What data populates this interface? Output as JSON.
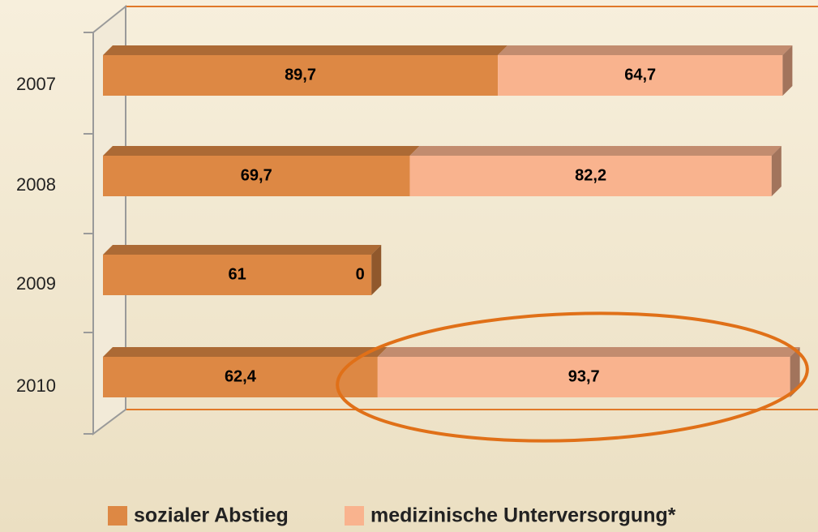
{
  "chart_data": {
    "type": "bar",
    "orientation": "horizontal",
    "stacked": true,
    "categories": [
      "2007",
      "2008",
      "2009",
      "2010"
    ],
    "series": [
      {
        "name": "sozialer Abstieg",
        "color": "#dd8844",
        "values": [
          89.7,
          69.7,
          61,
          62.4
        ],
        "value_labels": [
          "89,7",
          "69,7",
          "61",
          "62,4"
        ]
      },
      {
        "name": "medizinische Unterversorgung*",
        "color": "#f9b38e",
        "values": [
          64.7,
          82.2,
          0,
          93.7
        ],
        "value_labels": [
          "64,7",
          "82,2",
          "0",
          "93,7"
        ]
      }
    ]
  }
}
